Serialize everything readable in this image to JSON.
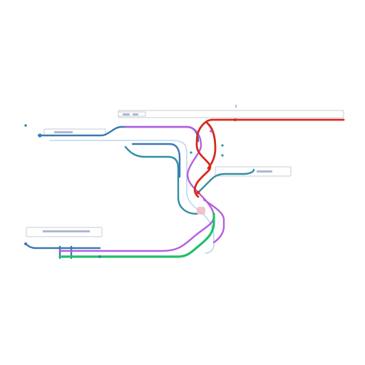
{
  "colors": {
    "background": "#ffffff",
    "line_red": "#d62a1e",
    "line_blue": "#3a78b5",
    "line_purple": "#b45ee0",
    "line_green": "#1fbf6a",
    "line_teal": "#2f8fa3",
    "line_pale_blue": "#bcd7ea",
    "line_pale_pink": "#f2b8c6",
    "label_box_stroke": "#c6ccd4",
    "label_box_fill": "#ffffff",
    "label_text": "#6a7dac"
  }
}
